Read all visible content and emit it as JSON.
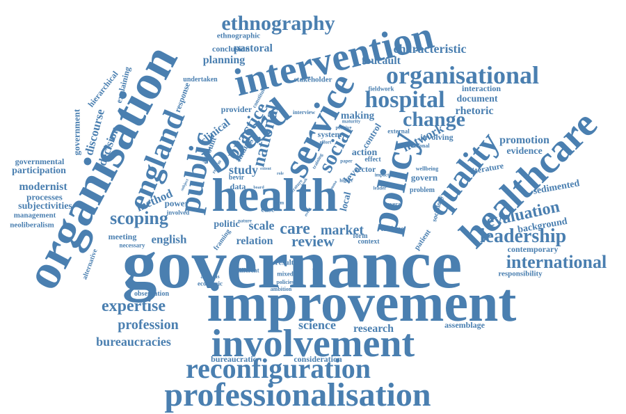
{
  "color": "#4a7fb0",
  "words": [
    "governance",
    "improvement",
    "organisation",
    "intervention",
    "health",
    "healthcare",
    "involvement",
    "professionalisation",
    "board",
    "service",
    "policy",
    "quality",
    "organisational",
    "england",
    "public",
    "reconfiguration",
    "ethnography",
    "hospital",
    "change",
    "international",
    "social",
    "leadership",
    "evaluation",
    "scoping",
    "expertise",
    "profession",
    "practice",
    "national",
    "care",
    "market",
    "review",
    "research",
    "science",
    "bureaucracies",
    "characteristic",
    "pastoral",
    "planning",
    "foucault",
    "network",
    "promotion",
    "rhetoric",
    "document",
    "interaction",
    "evidence",
    "sedimented",
    "background",
    "contemporary",
    "responsibility",
    "assemblage",
    "consideration",
    "bureaucratic",
    "modernist",
    "processes",
    "subjectivities",
    "participation",
    "governmental",
    "management",
    "neoliberalism",
    "government",
    "discourse",
    "decision",
    "hierarchical",
    "explaining",
    "response",
    "account",
    "clinical",
    "method",
    "study",
    "politic",
    "scale",
    "relation",
    "english",
    "meeting",
    "power",
    "involved",
    "necessary",
    "alternative",
    "economic",
    "observation",
    "different",
    "analysis",
    "framing",
    "result",
    "mixed",
    "policies",
    "ambition",
    "context",
    "form",
    "patient",
    "critique",
    "several",
    "problem",
    "govern",
    "sociology",
    "literature",
    "wellbeing",
    "involving",
    "rational",
    "external",
    "making",
    "system",
    "control",
    "action",
    "effect",
    "sector",
    "level",
    "local",
    "fieldwork",
    "stakeholder",
    "undertaken",
    "conclusion",
    "ethnographic",
    "provider",
    "interview",
    "maturity",
    "positive",
    "effort",
    "data",
    "bevir",
    "case",
    "finding",
    "constitute",
    "nature",
    "paper",
    "higher",
    "impact",
    "leader",
    "training",
    "term",
    "subject",
    "reform",
    "extent",
    "chapter",
    "literature",
    "board",
    "role",
    "book",
    "dilemma",
    "event"
  ]
}
